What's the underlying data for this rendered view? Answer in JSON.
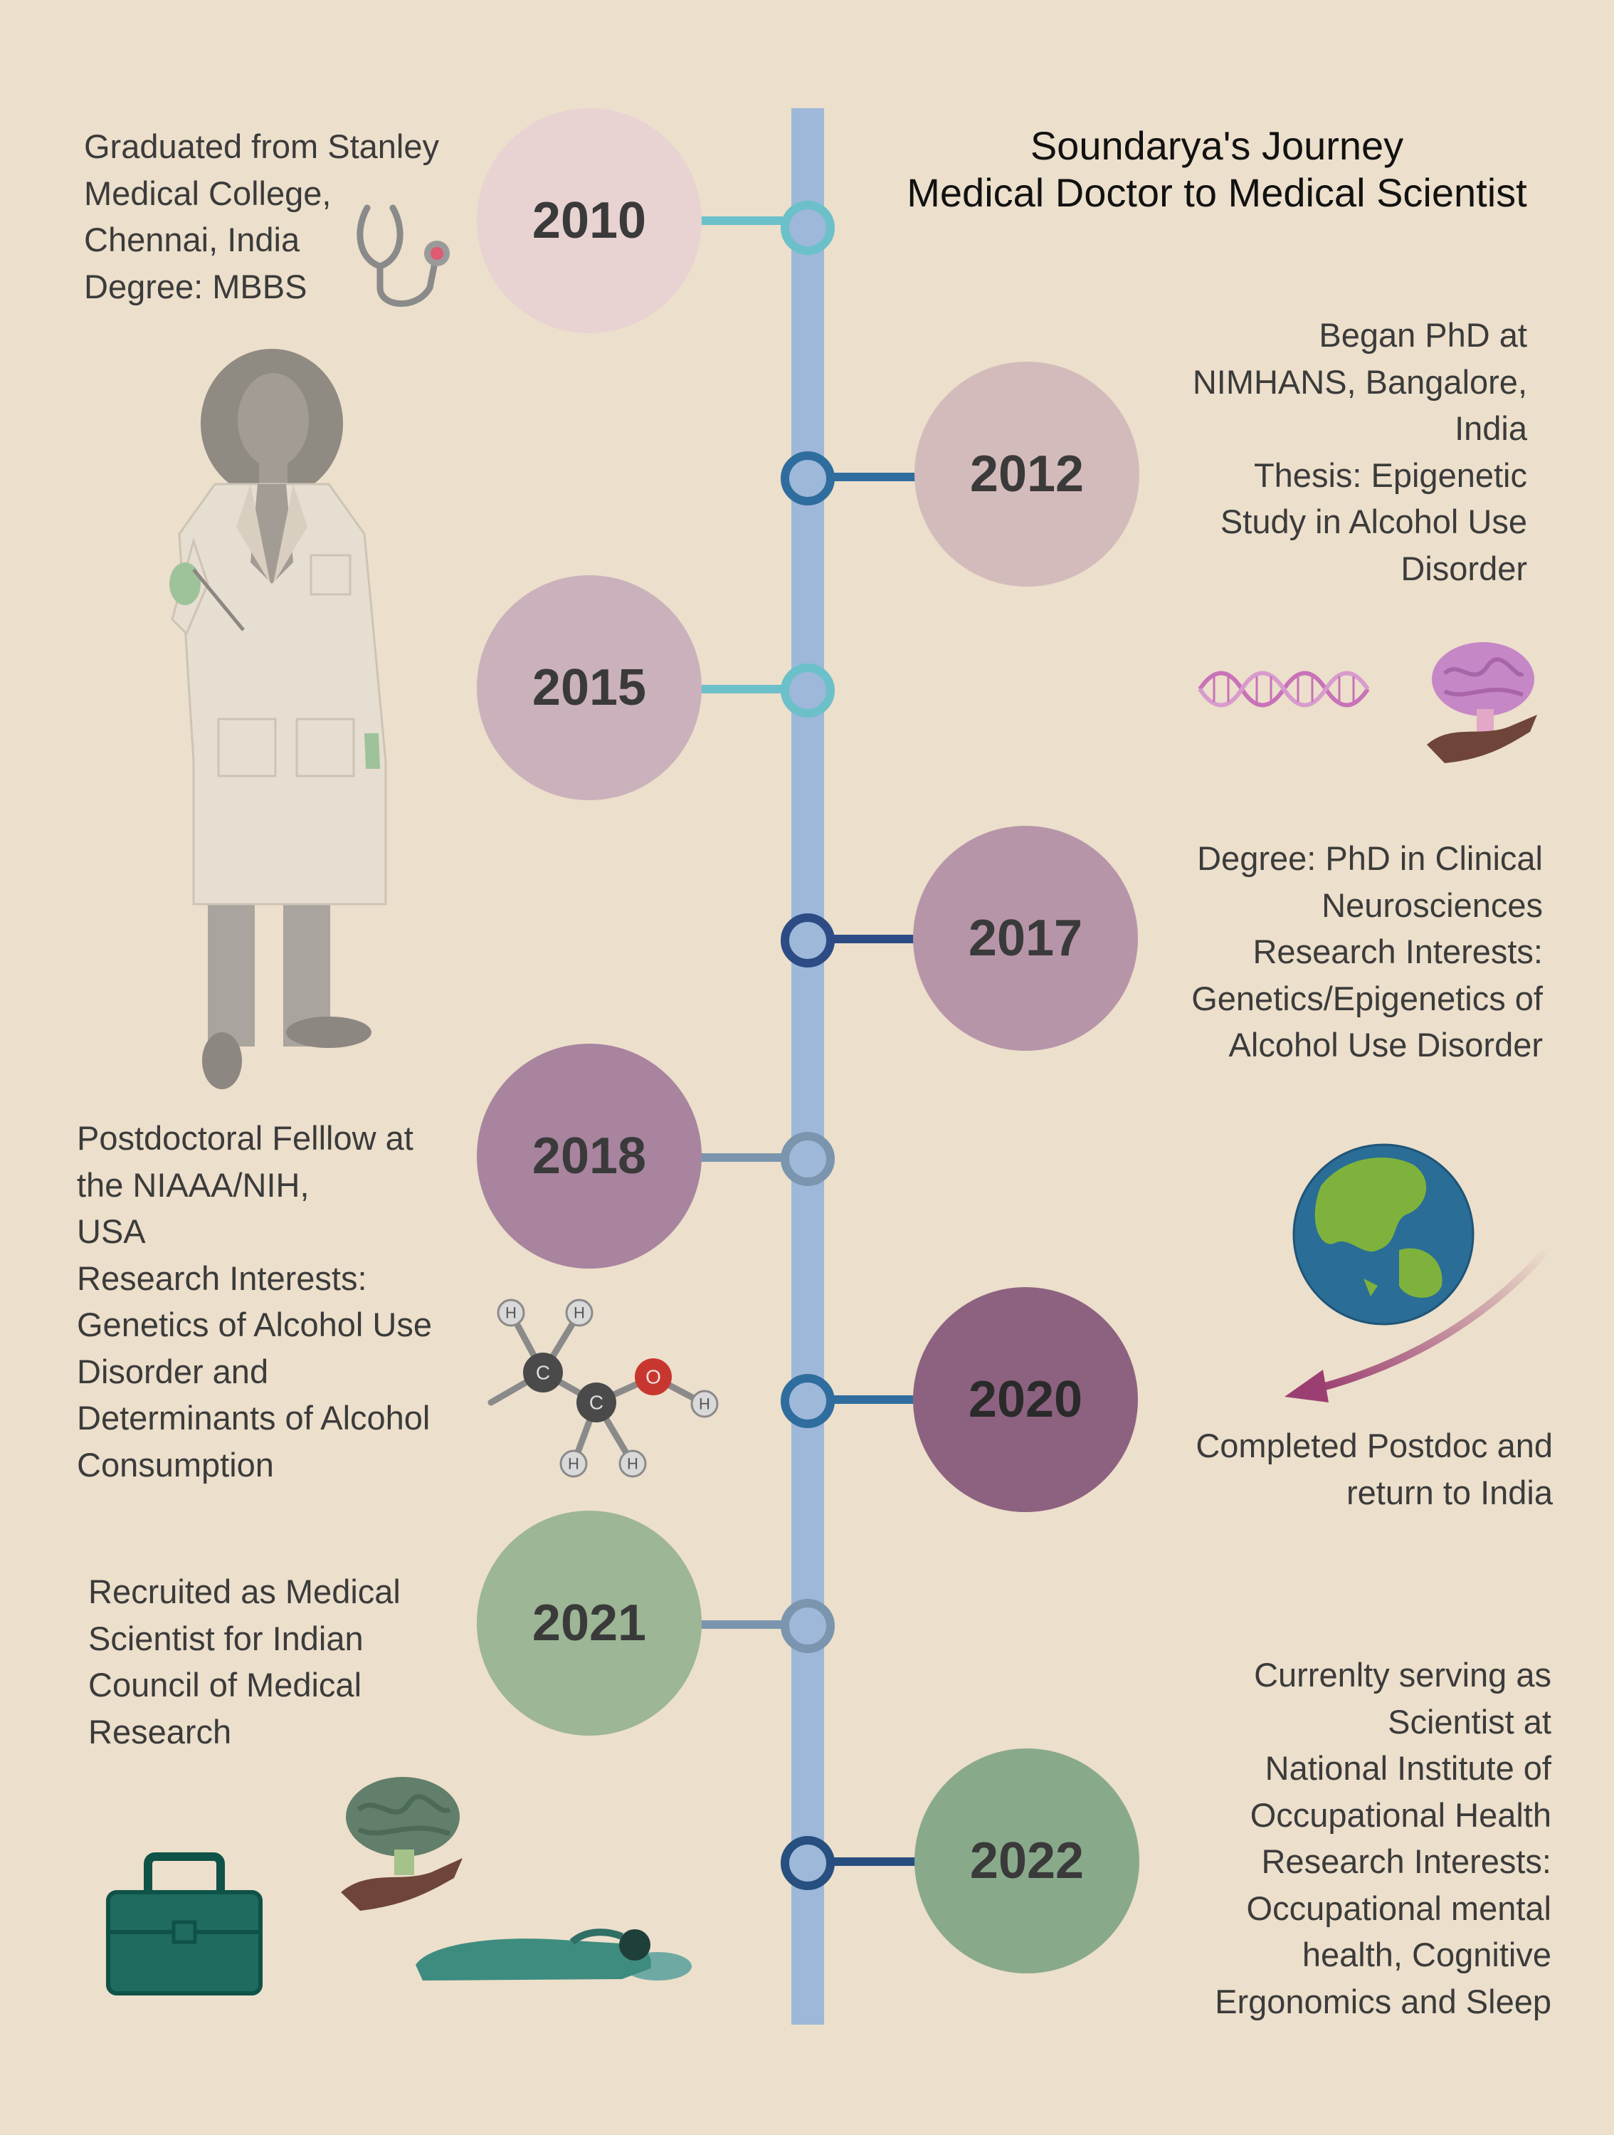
{
  "title": {
    "line1": "Soundarya's Journey",
    "line2": "Medical Doctor to Medical Scientist"
  },
  "timeline": [
    {
      "year": "2010",
      "text": "Graduated from Stanley\nMedical College,\nChennai, India\nDegree: MBBS",
      "fill": "#e8d2d2"
    },
    {
      "year": "2012",
      "text": "Began PhD at\nNIMHANS, Bangalore,\nIndia\nThesis: Epigenetic\nStudy in Alcohol Use\nDisorder",
      "fill": "#d4bbbb"
    },
    {
      "year": "2015",
      "text": "",
      "fill": "#cbb1bb"
    },
    {
      "year": "2017",
      "text": "Degree: PhD in Clinical\nNeurosciences\nResearch Interests:\nGenetics/Epigenetics of\nAlcohol Use Disorder",
      "fill": "#b795a8"
    },
    {
      "year": "2018",
      "text": "Postdoctoral Felllow at\nthe NIAAA/NIH,\nUSA\nResearch Interests:\nGenetics of Alcohol Use\nDisorder and\nDeterminants of Alcohol\nConsumption",
      "fill": "#a8849f"
    },
    {
      "year": "2020",
      "text": "Completed Postdoc and\nreturn to India",
      "fill": "#8d6280"
    },
    {
      "year": "2021",
      "text": "Recruited as Medical\nScientist for Indian\nCouncil of Medical\nResearch",
      "fill": "#9cb696"
    },
    {
      "year": "2022",
      "text": "Currenlty serving as\nScientist at \nNational Institute of\nOccupational Health \nResearch Interests:\nOccupational mental\nhealth, Cognitive\nErgonomics and Sleep",
      "fill": "#89a98b"
    }
  ],
  "colors": {
    "background": "#ecdfcb",
    "axis": "#9db8d9",
    "teal_link": "#6cc0c9",
    "blue_link": "#2f6d9e",
    "navy_link": "#2d4c85",
    "grey_link": "#7a95ad",
    "dark_link": "#274f7f"
  },
  "icons": {
    "stethoscope": "stethoscope-icon",
    "scientist": "scientist-figure",
    "dna": "dna-icon",
    "brain_hand": "brain-in-hand-icon",
    "molecule": "ethanol-molecule-icon",
    "globe": "globe-icon",
    "arrow": "return-arrow-icon",
    "toolbox": "toolbox-icon",
    "sleeper": "sleeping-person-icon"
  },
  "molecule_atoms": {
    "hydrogen": "H",
    "carbon": "C",
    "oxygen": "O"
  }
}
